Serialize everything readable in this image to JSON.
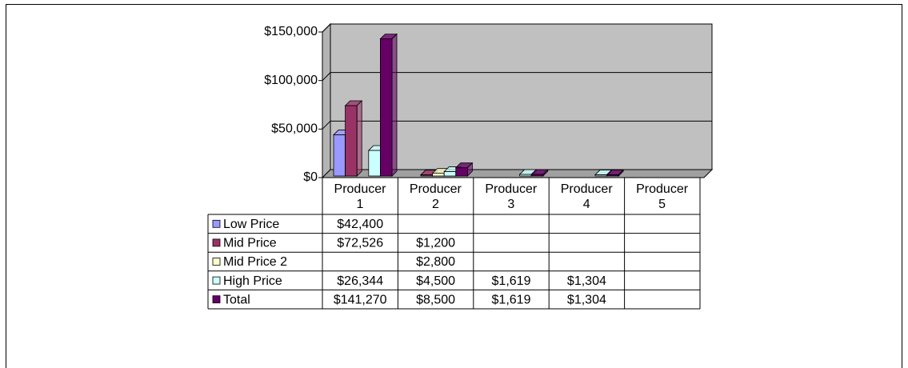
{
  "chart_data": {
    "type": "bar3d",
    "categories": [
      "Producer 1",
      "Producer 2",
      "Producer 3",
      "Producer 4",
      "Producer 5"
    ],
    "series": [
      {
        "name": "Low Price",
        "color": "#9999ff",
        "values": [
          42400,
          null,
          null,
          null,
          null
        ],
        "value_labels": [
          "$42,400",
          null,
          null,
          null,
          null
        ]
      },
      {
        "name": "Mid Price",
        "color": "#993366",
        "values": [
          72526,
          1200,
          null,
          null,
          null
        ],
        "value_labels": [
          "$72,526",
          "$1,200",
          null,
          null,
          null
        ]
      },
      {
        "name": "Mid Price 2",
        "color": "#ffffcc",
        "values": [
          null,
          2800,
          null,
          null,
          null
        ],
        "value_labels": [
          null,
          "$2,800",
          null,
          null,
          null
        ]
      },
      {
        "name": "High Price",
        "color": "#ccffff",
        "values": [
          26344,
          4500,
          1619,
          1304,
          null
        ],
        "value_labels": [
          "$26,344",
          "$4,500",
          "$1,619",
          "$1,304",
          null
        ]
      },
      {
        "name": "Total",
        "color": "#660066",
        "values": [
          141270,
          8500,
          1619,
          1304,
          null
        ],
        "value_labels": [
          "$141,270",
          "$8,500",
          "$1,619",
          "$1,304",
          null
        ]
      }
    ],
    "ylim": [
      0,
      150000
    ],
    "yticks": [
      {
        "value": 0,
        "label": "$0"
      },
      {
        "value": 50000,
        "label": "$50,000"
      },
      {
        "value": 100000,
        "label": "$100,000"
      },
      {
        "value": 150000,
        "label": "$150,000"
      }
    ],
    "grid": true
  }
}
